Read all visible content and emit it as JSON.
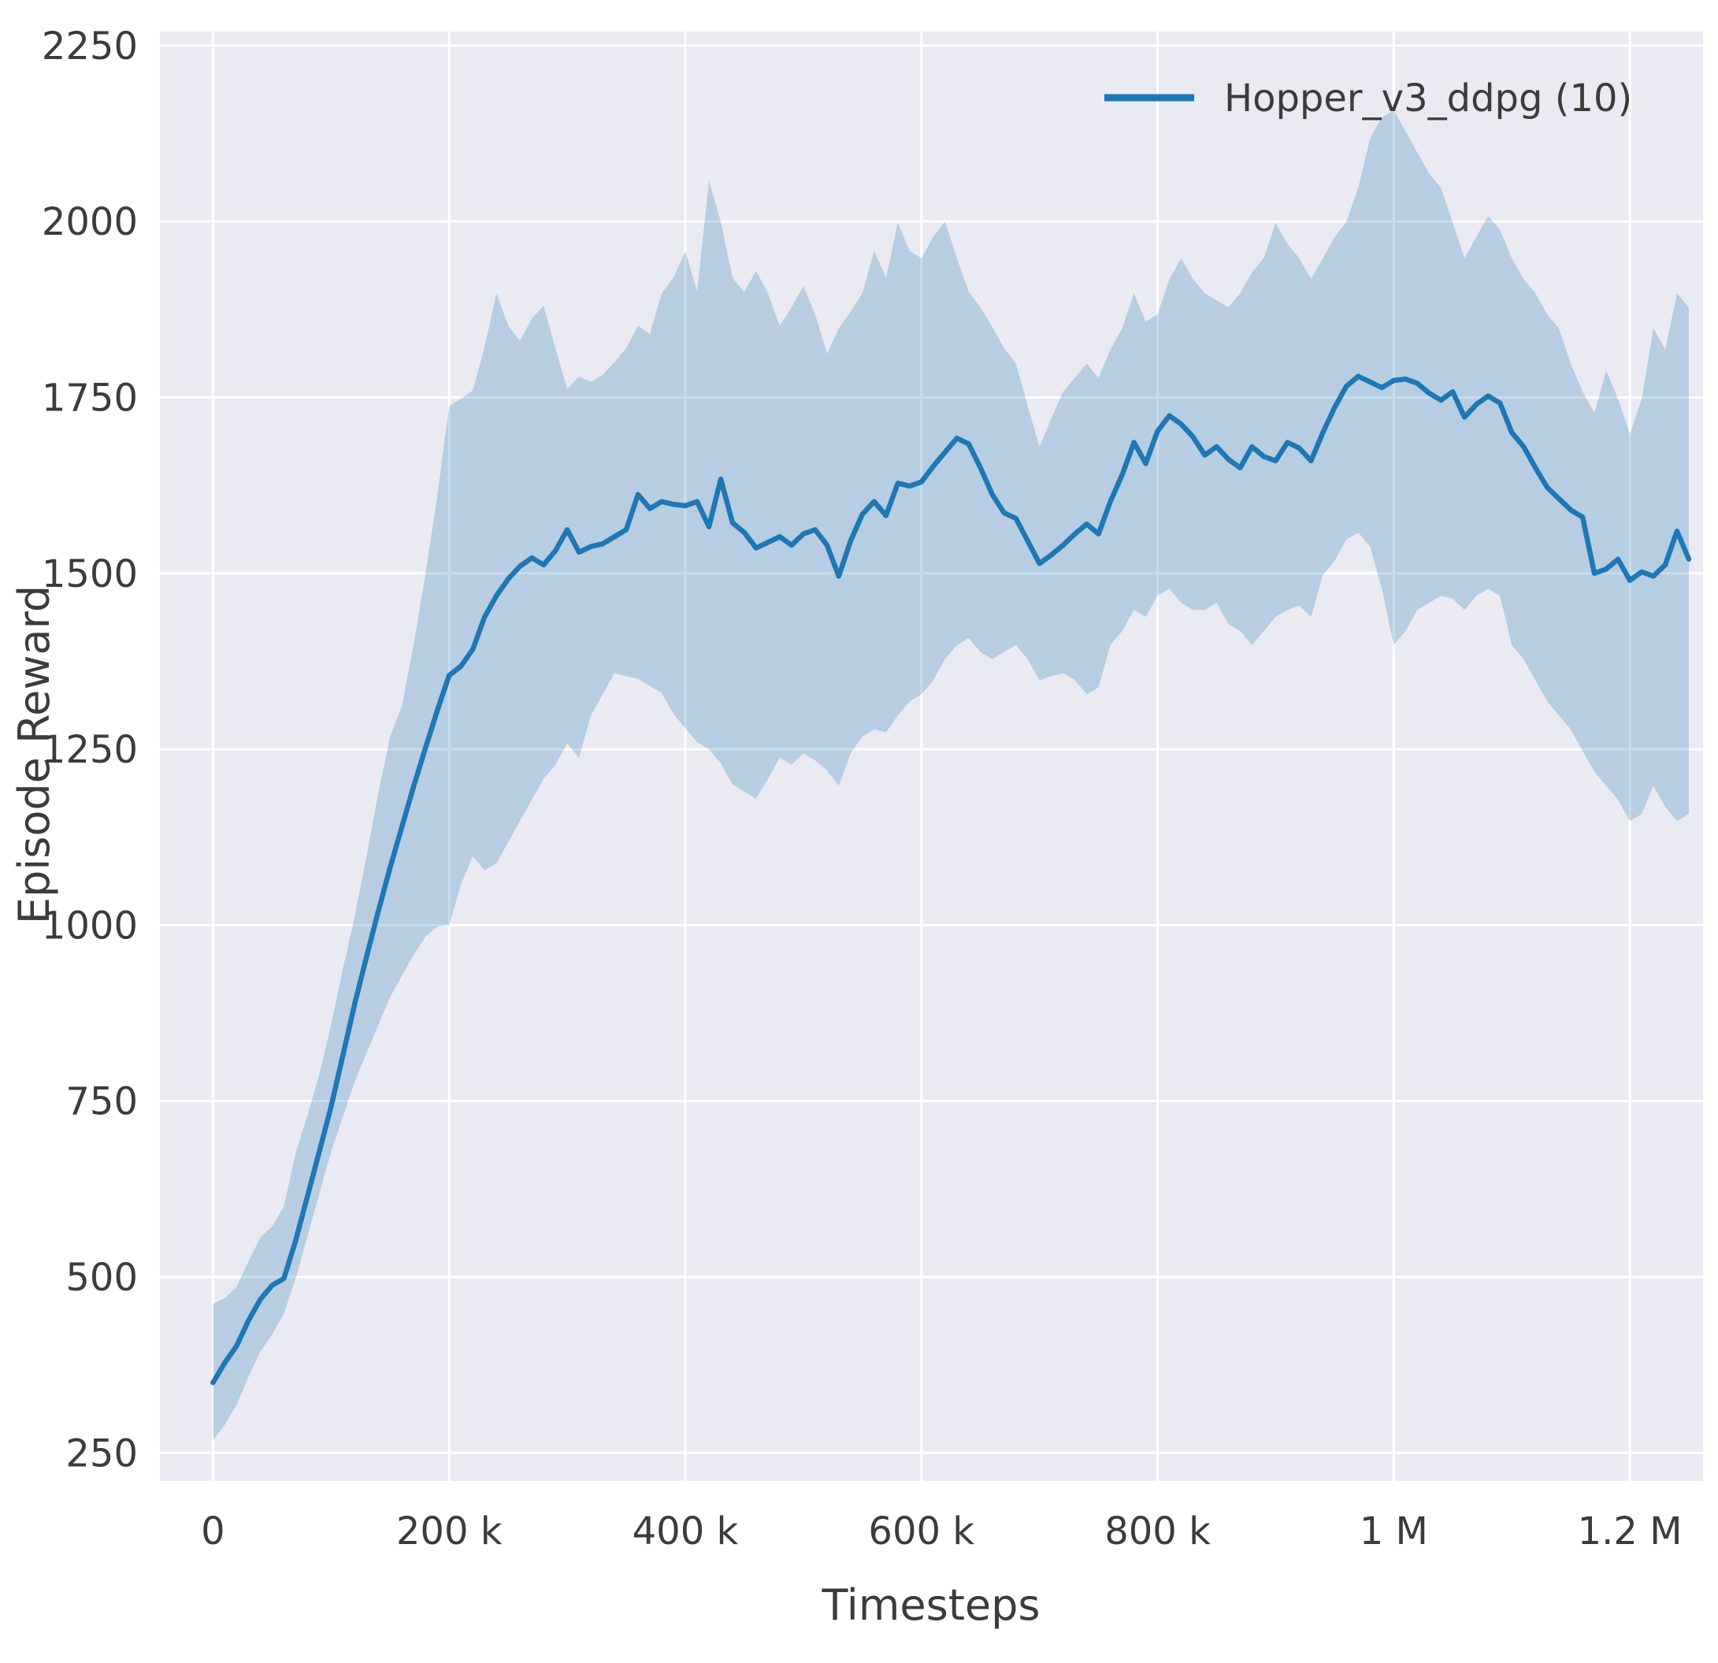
{
  "chart_data": {
    "type": "line",
    "title": "",
    "xlabel": "Timesteps",
    "ylabel": "Episode Reward",
    "grid": true,
    "legend_position": "upper right",
    "background": "#eaeaf2",
    "line_color": "#1f77b4",
    "band_opacity": 0.25,
    "text_color": "#3b3b3b",
    "xlim": [
      -45000,
      1262000
    ],
    "ylim": [
      210,
      2270
    ],
    "xticks": [
      {
        "value": 0,
        "label": "0"
      },
      {
        "value": 200000,
        "label": "200 k"
      },
      {
        "value": 400000,
        "label": "400 k"
      },
      {
        "value": 600000,
        "label": "600 k"
      },
      {
        "value": 800000,
        "label": "800 k"
      },
      {
        "value": 1000000,
        "label": "1 M"
      },
      {
        "value": 1200000,
        "label": "1.2 M"
      }
    ],
    "yticks": [
      {
        "value": 250,
        "label": "250"
      },
      {
        "value": 500,
        "label": "500"
      },
      {
        "value": 750,
        "label": "750"
      },
      {
        "value": 1000,
        "label": "1000"
      },
      {
        "value": 1250,
        "label": "1250"
      },
      {
        "value": 1500,
        "label": "1500"
      },
      {
        "value": 1750,
        "label": "1750"
      },
      {
        "value": 2000,
        "label": "2000"
      },
      {
        "value": 2250,
        "label": "2250"
      }
    ],
    "x": [
      0,
      10000,
      20000,
      30000,
      40000,
      50000,
      60000,
      70000,
      80000,
      90000,
      100000,
      110000,
      120000,
      130000,
      140000,
      150000,
      160000,
      170000,
      180000,
      190000,
      200000,
      210000,
      220000,
      230000,
      240000,
      250000,
      260000,
      270000,
      280000,
      290000,
      300000,
      310000,
      320000,
      330000,
      340000,
      350000,
      360000,
      370000,
      380000,
      390000,
      400000,
      410000,
      420000,
      430000,
      440000,
      450000,
      460000,
      470000,
      480000,
      490000,
      500000,
      510000,
      520000,
      530000,
      540000,
      550000,
      560000,
      570000,
      580000,
      590000,
      600000,
      610000,
      620000,
      630000,
      640000,
      650000,
      660000,
      670000,
      680000,
      690000,
      700000,
      710000,
      720000,
      730000,
      740000,
      750000,
      760000,
      770000,
      780000,
      790000,
      800000,
      810000,
      820000,
      830000,
      840000,
      850000,
      860000,
      870000,
      880000,
      890000,
      900000,
      910000,
      920000,
      930000,
      940000,
      950000,
      960000,
      970000,
      980000,
      990000,
      1000000,
      1010000,
      1020000,
      1030000,
      1040000,
      1050000,
      1060000,
      1070000,
      1080000,
      1090000,
      1100000,
      1110000,
      1120000,
      1130000,
      1140000,
      1150000,
      1160000,
      1170000,
      1180000,
      1190000,
      1200000,
      1210000,
      1220000,
      1230000,
      1240000,
      1250000
    ],
    "series": [
      {
        "name": "Hopper_v3_ddpg (10)",
        "mean": [
          350,
          378,
          402,
          438,
          468,
          488,
          498,
          552,
          615,
          678,
          742,
          815,
          888,
          955,
          1020,
          1082,
          1140,
          1198,
          1252,
          1305,
          1355,
          1368,
          1392,
          1438,
          1468,
          1492,
          1510,
          1522,
          1512,
          1532,
          1562,
          1530,
          1538,
          1542,
          1552,
          1562,
          1612,
          1592,
          1602,
          1598,
          1596,
          1602,
          1566,
          1634,
          1572,
          1558,
          1536,
          1544,
          1552,
          1540,
          1556,
          1562,
          1540,
          1496,
          1546,
          1584,
          1602,
          1582,
          1628,
          1624,
          1630,
          1652,
          1672,
          1692,
          1684,
          1650,
          1612,
          1586,
          1578,
          1546,
          1514,
          1526,
          1540,
          1556,
          1570,
          1556,
          1602,
          1640,
          1686,
          1656,
          1702,
          1724,
          1712,
          1694,
          1668,
          1680,
          1662,
          1650,
          1680,
          1666,
          1660,
          1686,
          1678,
          1660,
          1700,
          1736,
          1766,
          1780,
          1772,
          1764,
          1774,
          1776,
          1770,
          1756,
          1746,
          1758,
          1722,
          1740,
          1752,
          1742,
          1700,
          1680,
          1650,
          1622,
          1606,
          1590,
          1580,
          1500,
          1506,
          1520,
          1490,
          1502,
          1496,
          1512,
          1560,
          1520
        ],
        "upper": [
          462,
          470,
          486,
          522,
          556,
          572,
          600,
          676,
          730,
          788,
          858,
          938,
          1012,
          1098,
          1188,
          1268,
          1312,
          1400,
          1500,
          1610,
          1738,
          1748,
          1760,
          1822,
          1898,
          1852,
          1830,
          1862,
          1880,
          1820,
          1762,
          1780,
          1772,
          1782,
          1800,
          1820,
          1852,
          1840,
          1898,
          1920,
          1958,
          1900,
          2058,
          2000,
          1920,
          1900,
          1930,
          1898,
          1852,
          1878,
          1908,
          1868,
          1812,
          1848,
          1872,
          1898,
          1958,
          1920,
          1998,
          1958,
          1948,
          1978,
          2000,
          1948,
          1900,
          1878,
          1850,
          1820,
          1798,
          1738,
          1680,
          1720,
          1758,
          1778,
          1798,
          1778,
          1818,
          1848,
          1898,
          1858,
          1868,
          1918,
          1948,
          1918,
          1898,
          1888,
          1878,
          1898,
          1928,
          1948,
          1998,
          1968,
          1948,
          1918,
          1948,
          1978,
          2000,
          2048,
          2118,
          2148,
          2158,
          2128,
          2098,
          2068,
          2048,
          1998,
          1948,
          1978,
          2008,
          1988,
          1948,
          1918,
          1898,
          1868,
          1848,
          1798,
          1758,
          1728,
          1788,
          1748,
          1698,
          1748,
          1848,
          1818,
          1898,
          1878
        ],
        "lower": [
          268,
          290,
          318,
          358,
          394,
          418,
          448,
          498,
          558,
          618,
          678,
          728,
          778,
          818,
          858,
          898,
          928,
          958,
          984,
          998,
          1000,
          1058,
          1098,
          1078,
          1088,
          1118,
          1148,
          1178,
          1208,
          1228,
          1258,
          1238,
          1298,
          1328,
          1358,
          1354,
          1350,
          1340,
          1330,
          1300,
          1280,
          1260,
          1250,
          1230,
          1200,
          1190,
          1180,
          1208,
          1238,
          1228,
          1244,
          1234,
          1220,
          1198,
          1244,
          1268,
          1278,
          1274,
          1298,
          1318,
          1328,
          1348,
          1378,
          1398,
          1408,
          1388,
          1378,
          1388,
          1398,
          1378,
          1348,
          1354,
          1358,
          1348,
          1328,
          1338,
          1398,
          1418,
          1448,
          1438,
          1468,
          1478,
          1458,
          1448,
          1448,
          1458,
          1428,
          1418,
          1398,
          1418,
          1438,
          1448,
          1454,
          1438,
          1498,
          1518,
          1548,
          1558,
          1538,
          1478,
          1398,
          1418,
          1448,
          1458,
          1468,
          1464,
          1448,
          1468,
          1478,
          1468,
          1398,
          1378,
          1348,
          1318,
          1298,
          1278,
          1248,
          1218,
          1198,
          1178,
          1148,
          1158,
          1198,
          1168,
          1148,
          1158
        ]
      }
    ]
  }
}
